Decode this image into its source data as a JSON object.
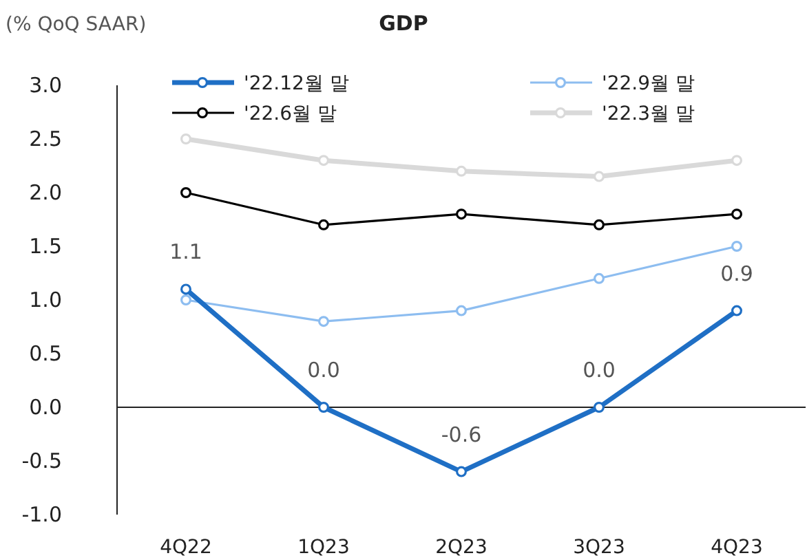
{
  "chart_data": {
    "type": "line",
    "title": "GDP",
    "ylabel": "(% QoQ SAAR)",
    "categories": [
      "4Q22",
      "1Q23",
      "2Q23",
      "3Q23",
      "4Q23"
    ],
    "series": [
      {
        "name": "'22.12월 말",
        "color": "#1f6fc5",
        "values": [
          1.1,
          0.0,
          -0.6,
          0.0,
          0.9
        ],
        "value_labels": [
          "1.1",
          "0.0",
          "-0.6",
          "0.0",
          "0.9"
        ]
      },
      {
        "name": "'22.9월 말",
        "color": "#8dbdf0",
        "values": [
          1.0,
          0.8,
          0.9,
          1.2,
          1.5
        ]
      },
      {
        "name": "'22.6월 말",
        "color": "#000000",
        "values": [
          2.0,
          1.7,
          1.8,
          1.7,
          1.8
        ]
      },
      {
        "name": "'22.3월 말",
        "color": "#d9d9d9",
        "values": [
          2.5,
          2.3,
          2.2,
          2.15,
          2.3
        ]
      }
    ],
    "ylim": [
      -1.0,
      3.0
    ],
    "yticks": [
      {
        "value": -1,
        "label": "-1.0"
      },
      {
        "value": -0.5,
        "label": "-0.5"
      },
      {
        "value": 0,
        "label": "0.0"
      },
      {
        "value": 0.5,
        "label": "0.5"
      },
      {
        "value": 1,
        "label": "1.0"
      },
      {
        "value": 1.5,
        "label": "1.5"
      },
      {
        "value": 2,
        "label": "2.0"
      },
      {
        "value": 2.5,
        "label": "2.5"
      },
      {
        "value": 3,
        "label": "3.0"
      }
    ],
    "marker": "circle",
    "line_style": "solid",
    "legend": "top"
  }
}
